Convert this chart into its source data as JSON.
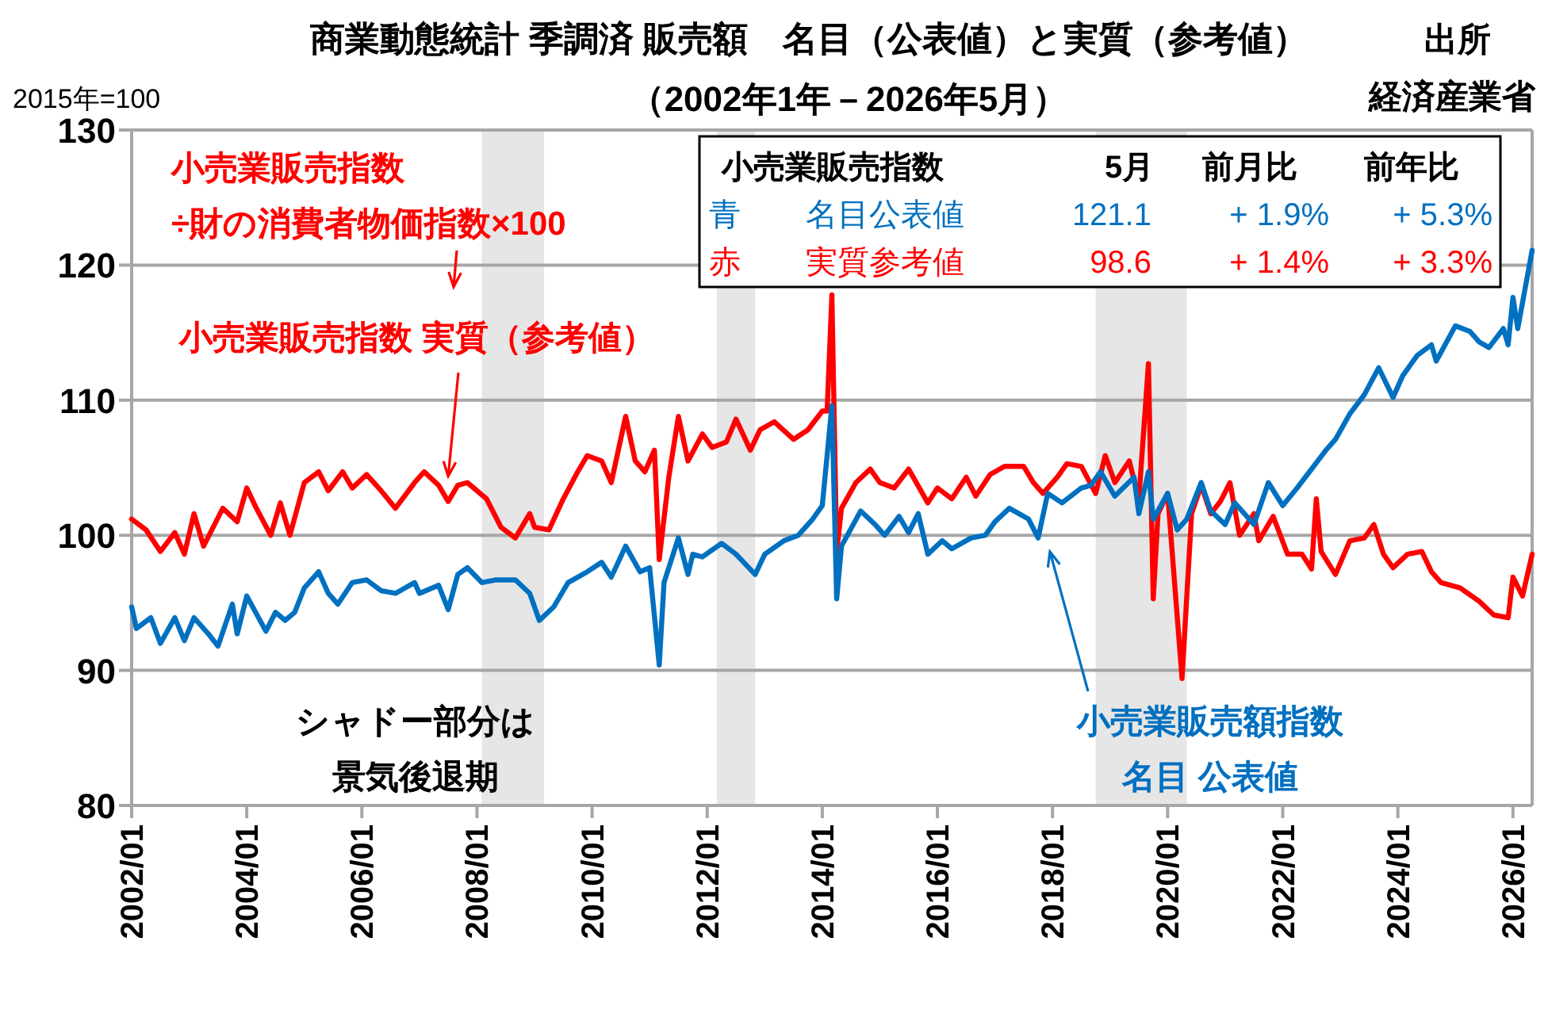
{
  "chart_data": {
    "type": "line",
    "title": "商業動態統計 季調済 販売額　名目（公表値）と実質（参考値）",
    "subtitle": "（2002年1年－2026年5月）",
    "ylabel": "2015年=100",
    "xlim": [
      "2002-01",
      "2026-05"
    ],
    "xticks": [
      {
        "value": "2002-01",
        "label": "2002/01"
      },
      {
        "value": "2004-01",
        "label": "2004/01"
      },
      {
        "value": "2006-01",
        "label": "2006/01"
      },
      {
        "value": "2008-01",
        "label": "2008/01"
      },
      {
        "value": "2010-01",
        "label": "2010/01"
      },
      {
        "value": "2012-01",
        "label": "2012/01"
      },
      {
        "value": "2014-01",
        "label": "2014/01"
      },
      {
        "value": "2016-01",
        "label": "2016/01"
      },
      {
        "value": "2018-01",
        "label": "2018/01"
      },
      {
        "value": "2020-01",
        "label": "2020/01"
      },
      {
        "value": "2022-01",
        "label": "2022/01"
      },
      {
        "value": "2024-01",
        "label": "2024/01"
      },
      {
        "value": "2026-01",
        "label": "2026/01"
      }
    ],
    "ylim": [
      80,
      130
    ],
    "yticks": [
      80,
      90,
      100,
      110,
      120,
      130
    ],
    "grid": "y",
    "bands": [
      {
        "axis": "x",
        "from": "2008-02",
        "to": "2009-03",
        "color": "#e6e6e6"
      },
      {
        "axis": "x",
        "from": "2012-03",
        "to": "2012-11",
        "color": "#e6e6e6"
      },
      {
        "axis": "x",
        "from": "2018-10",
        "to": "2020-05",
        "color": "#e6e6e6"
      }
    ],
    "series": [
      {
        "color": "#ff0000",
        "x": [
          "2002-01",
          "2002-04",
          "2002-07",
          "2002-10",
          "2002-12",
          "2003-02",
          "2003-04",
          "2003-08",
          "2003-11",
          "2004-01",
          "2004-03",
          "2004-06",
          "2004-08",
          "2004-10",
          "2005-01",
          "2005-04",
          "2005-06",
          "2005-09",
          "2005-11",
          "2006-02",
          "2006-05",
          "2006-08",
          "2006-12",
          "2007-02",
          "2007-05",
          "2007-07",
          "2007-09",
          "2007-11",
          "2008-03",
          "2008-06",
          "2008-09",
          "2008-12",
          "2009-01",
          "2009-04",
          "2009-07",
          "2009-10",
          "2009-12",
          "2010-03",
          "2010-05",
          "2010-08",
          "2010-10",
          "2010-12",
          "2011-02",
          "2011-03",
          "2011-05",
          "2011-07",
          "2011-09",
          "2011-12",
          "2012-02",
          "2012-05",
          "2012-07",
          "2012-10",
          "2012-12",
          "2013-03",
          "2013-07",
          "2013-10",
          "2014-01",
          "2014-02",
          "2014-03",
          "2014-04",
          "2014-05",
          "2014-08",
          "2014-11",
          "2015-01",
          "2015-04",
          "2015-07",
          "2015-11",
          "2016-01",
          "2016-04",
          "2016-07",
          "2016-09",
          "2016-12",
          "2017-03",
          "2017-07",
          "2017-09",
          "2017-11",
          "2018-02",
          "2018-04",
          "2018-07",
          "2018-10",
          "2018-12",
          "2019-02",
          "2019-05",
          "2019-07",
          "2019-09",
          "2019-10",
          "2019-11",
          "2020-01",
          "2020-04",
          "2020-06",
          "2020-08",
          "2020-10",
          "2020-12",
          "2021-02",
          "2021-04",
          "2021-07",
          "2021-08",
          "2021-11",
          "2022-02",
          "2022-05",
          "2022-07",
          "2022-08",
          "2022-09",
          "2022-12",
          "2023-03",
          "2023-06",
          "2023-08",
          "2023-10",
          "2023-12",
          "2024-03",
          "2024-06",
          "2024-08",
          "2024-10",
          "2025-02",
          "2025-06",
          "2025-09",
          "2025-12",
          "2026-01",
          "2026-03",
          "2026-05"
        ],
        "values": [
          101.2,
          100.4,
          98.8,
          100.2,
          98.6,
          101.6,
          99.2,
          102,
          101,
          103.5,
          102,
          100,
          102.4,
          100,
          103.9,
          104.7,
          103.3,
          104.7,
          103.5,
          104.5,
          103.3,
          102,
          103.9,
          104.7,
          103.7,
          102.5,
          103.7,
          103.9,
          102.7,
          100.6,
          99.8,
          101.6,
          100.6,
          100.4,
          102.7,
          104.7,
          105.9,
          105.5,
          103.9,
          108.8,
          105.5,
          104.7,
          106.3,
          98.2,
          104.3,
          108.8,
          105.5,
          107.5,
          106.5,
          106.9,
          108.6,
          106.3,
          107.8,
          108.4,
          107.1,
          107.8,
          109.2,
          109.2,
          117.8,
          98.8,
          102,
          103.9,
          104.9,
          103.9,
          103.5,
          104.9,
          102.4,
          103.5,
          102.7,
          104.3,
          102.9,
          104.5,
          105.1,
          105.1,
          103.9,
          103.1,
          104.3,
          105.3,
          105.1,
          103.1,
          105.9,
          103.9,
          105.5,
          102.7,
          112.7,
          95.3,
          101.6,
          103.1,
          89.4,
          101.6,
          103.7,
          101.6,
          102.5,
          103.9,
          100,
          101.6,
          99.6,
          101.4,
          98.6,
          98.6,
          97.5,
          102.7,
          98.8,
          97.1,
          99.6,
          99.8,
          100.8,
          98.6,
          97.6,
          98.6,
          98.8,
          97.3,
          96.5,
          96.1,
          95.1,
          94.1,
          93.9,
          96.9,
          95.5,
          98.6
        ]
      },
      {
        "color": "#0070c0",
        "x": [
          "2002-01",
          "2002-02",
          "2002-05",
          "2002-07",
          "2002-10",
          "2002-12",
          "2003-02",
          "2003-05",
          "2003-07",
          "2003-10",
          "2003-11",
          "2004-01",
          "2004-05",
          "2004-07",
          "2004-09",
          "2004-11",
          "2005-01",
          "2005-04",
          "2005-06",
          "2005-08",
          "2005-11",
          "2006-02",
          "2006-05",
          "2006-08",
          "2006-12",
          "2007-01",
          "2007-05",
          "2007-07",
          "2007-09",
          "2007-11",
          "2008-02",
          "2008-05",
          "2008-09",
          "2008-12",
          "2009-02",
          "2009-05",
          "2009-08",
          "2009-12",
          "2010-03",
          "2010-05",
          "2010-08",
          "2010-11",
          "2011-01",
          "2011-03",
          "2011-04",
          "2011-07",
          "2011-09",
          "2011-10",
          "2011-12",
          "2012-04",
          "2012-07",
          "2012-11",
          "2013-01",
          "2013-05",
          "2013-08",
          "2013-11",
          "2014-01",
          "2014-03",
          "2014-04",
          "2014-05",
          "2014-09",
          "2014-12",
          "2015-02",
          "2015-05",
          "2015-07",
          "2015-09",
          "2015-11",
          "2016-02",
          "2016-04",
          "2016-08",
          "2016-11",
          "2017-01",
          "2017-04",
          "2017-08",
          "2017-10",
          "2017-12",
          "2018-03",
          "2018-07",
          "2018-09",
          "2018-11",
          "2019-02",
          "2019-06",
          "2019-07",
          "2019-09",
          "2019-10",
          "2020-01",
          "2020-03",
          "2020-05",
          "2020-08",
          "2020-10",
          "2021-01",
          "2021-03",
          "2021-05",
          "2021-07",
          "2021-10",
          "2022-01",
          "2022-04",
          "2022-07",
          "2022-10",
          "2022-12",
          "2023-03",
          "2023-06",
          "2023-09",
          "2023-12",
          "2024-02",
          "2024-05",
          "2024-08",
          "2024-09",
          "2025-01",
          "2025-04",
          "2025-06",
          "2025-08",
          "2025-11",
          "2025-12",
          "2026-01",
          "2026-02",
          "2026-05"
        ],
        "values": [
          94.7,
          93.1,
          93.9,
          92,
          93.9,
          92.2,
          93.9,
          92.7,
          91.8,
          94.9,
          92.7,
          95.5,
          92.9,
          94.3,
          93.7,
          94.3,
          96.1,
          97.3,
          95.7,
          94.9,
          96.5,
          96.7,
          95.9,
          95.7,
          96.5,
          95.7,
          96.3,
          94.5,
          97.1,
          97.6,
          96.5,
          96.7,
          96.7,
          95.7,
          93.7,
          94.7,
          96.5,
          97.3,
          98,
          96.9,
          99.2,
          97.3,
          97.6,
          90.4,
          96.5,
          99.8,
          97.1,
          98.6,
          98.4,
          99.4,
          98.6,
          97.1,
          98.6,
          99.6,
          100,
          101.2,
          102.2,
          109.6,
          95.3,
          99.2,
          101.8,
          100.8,
          100,
          101.4,
          100.2,
          101.6,
          98.6,
          99.6,
          99,
          99.8,
          100,
          101,
          102,
          101.2,
          99.8,
          103.1,
          102.4,
          103.5,
          103.7,
          104.7,
          102.9,
          104.3,
          101.6,
          104.7,
          101.2,
          103.1,
          100.4,
          101.2,
          103.9,
          101.8,
          100.8,
          102.4,
          101.6,
          100.8,
          103.9,
          102.2,
          103.5,
          104.9,
          106.3,
          107.1,
          109,
          110.4,
          112.4,
          110.2,
          111.8,
          113.3,
          114.1,
          112.9,
          115.5,
          115.1,
          114.3,
          113.9,
          115.3,
          114.1,
          117.6,
          115.3,
          121.1
        ]
      }
    ],
    "annotations": [
      "小売業販売指数",
      "÷財の消費者物価指数×100",
      {
        "text": "小売業販売指数 実質（参考値）",
        "x": "2007-07",
        "y": 103.9
      },
      "小売業販売額指数",
      "名目 公表値",
      "シャドー部分は",
      "景気後退期",
      "出所",
      "経済産業省",
      "小売業販売指数",
      "5月",
      "前月比",
      "前年比",
      "青",
      "名目公表値",
      "121.1",
      "+ 1.9%",
      "+ 5.3%",
      "赤",
      "実質参考値",
      "98.6",
      "+ 1.4%",
      "+ 3.3%"
    ]
  }
}
